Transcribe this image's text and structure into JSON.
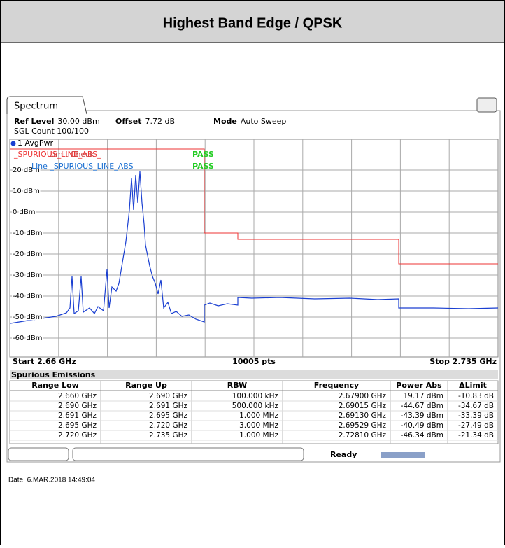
{
  "header": {
    "title": "Highest Band Edge / QPSK"
  },
  "tab": "Spectrum",
  "settings": [
    {
      "label": "Ref Level",
      "value": "30.00 dBm"
    },
    {
      "label": "Offset",
      "value": "7.72 dB"
    },
    {
      "label": "Mode",
      "value": "Auto Sweep"
    }
  ],
  "sgl_count": "SGL Count 100/100",
  "trace_label": "1 AvgPwr",
  "limit_name": "_SPURIOUS_LINE_ABS_",
  "limit_checks": [
    {
      "text": "Limit Check",
      "status": "PASS"
    },
    {
      "text": "Line _SPURIOUS_LINE_ABS",
      "status": "PASS"
    }
  ],
  "y_labels": [
    "20 dBm",
    "10 dBm",
    "0 dBm",
    "-10 dBm",
    "-20 dBm",
    "-30 dBm",
    "-40 dBm",
    "-50 dBm",
    "-60 dBm"
  ],
  "footer": {
    "start": "Start 2.66 GHz",
    "points": "10005 pts",
    "stop": "Stop 2.735 GHz"
  },
  "table": {
    "title": "Spurious Emissions",
    "columns": [
      "Range Low",
      "Range Up",
      "RBW",
      "Frequency",
      "Power Abs",
      "ΔLimit"
    ],
    "rows": [
      [
        "2.660 GHz",
        "2.690 GHz",
        "100.000 kHz",
        "2.67900 GHz",
        "19.17 dBm",
        "-10.83 dB"
      ],
      [
        "2.690 GHz",
        "2.691 GHz",
        "500.000 kHz",
        "2.69015 GHz",
        "-44.67 dBm",
        "-34.67 dB"
      ],
      [
        "2.691 GHz",
        "2.695 GHz",
        "1.000 MHz",
        "2.69130 GHz",
        "-43.39 dBm",
        "-33.39 dB"
      ],
      [
        "2.695 GHz",
        "2.720 GHz",
        "3.000 MHz",
        "2.69529 GHz",
        "-40.49 dBm",
        "-27.49 dB"
      ],
      [
        "2.720 GHz",
        "2.735 GHz",
        "1.000 MHz",
        "2.72810 GHz",
        "-46.34 dBm",
        "-21.34 dB"
      ]
    ]
  },
  "status": "Ready",
  "date": "Date: 6.MAR.2018 14:49:04"
}
